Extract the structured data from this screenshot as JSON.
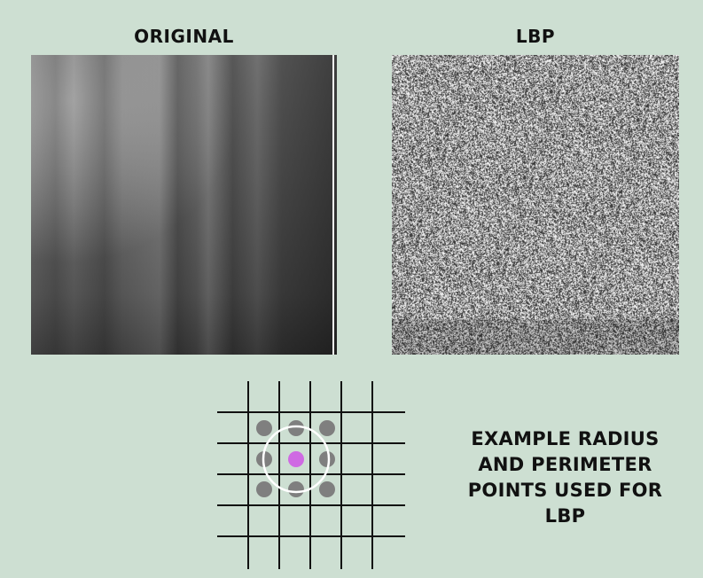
{
  "headings": {
    "original": "ORIGINAL",
    "lbp": "LBP"
  },
  "caption": {
    "lines": [
      "EXAMPLE RADIUS",
      "AND PERIMETER",
      "POINTS USED FOR",
      "LBP"
    ]
  },
  "colors": {
    "background": "#cddfd2",
    "grid_lines": "#111111",
    "perimeter_points": "#7f7f7f",
    "center_point": "#cf6ae3",
    "radius_circle": "#ffffff"
  }
}
